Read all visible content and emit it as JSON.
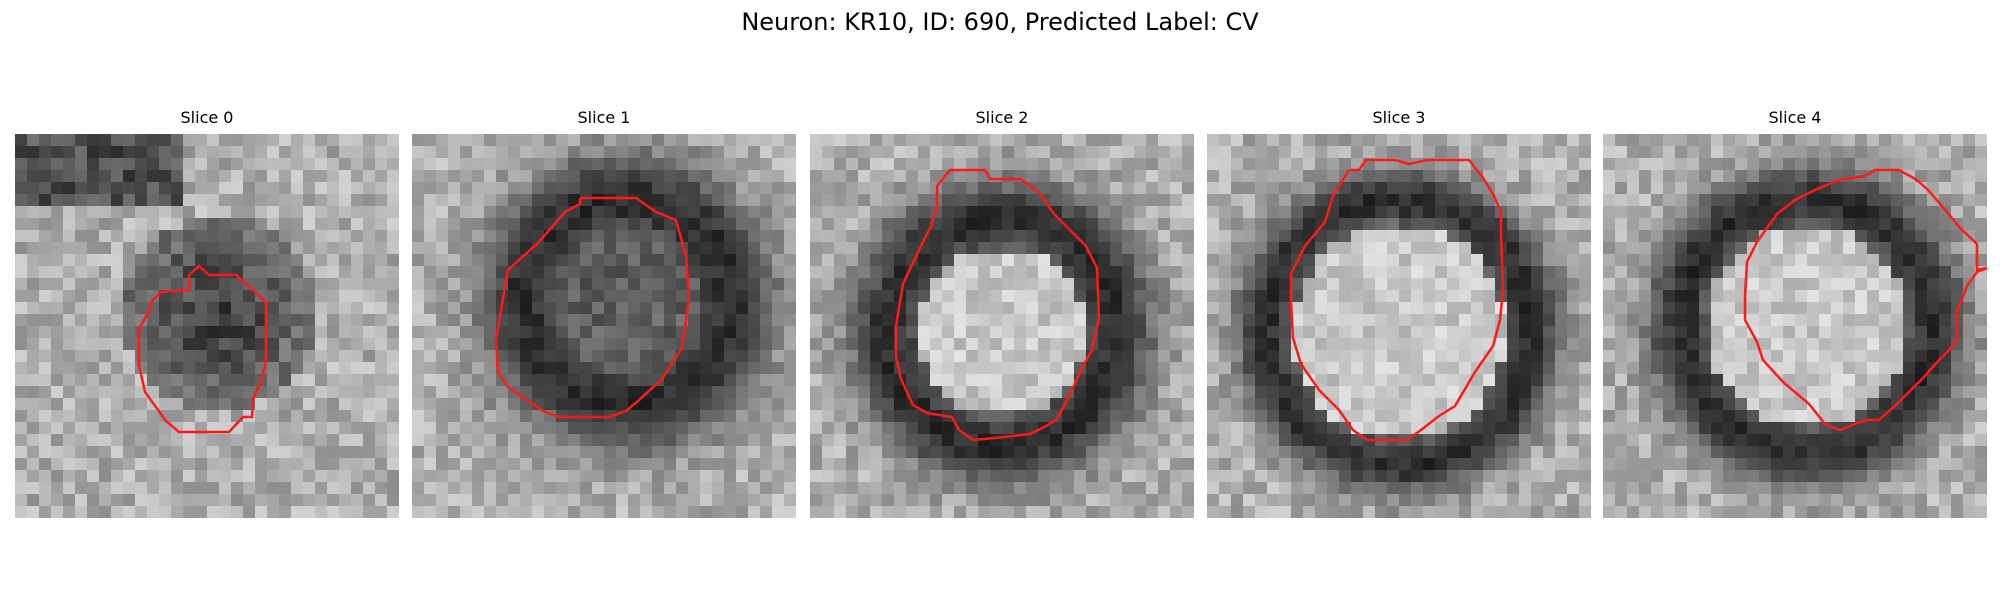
{
  "figure": {
    "title": "Neuron: KR10, ID: 690, Predicted Label: CV"
  },
  "panels": [
    {
      "title": "Slice 0",
      "morphology": "dark-blob"
    },
    {
      "title": "Slice 1",
      "morphology": "dark-ring-large"
    },
    {
      "title": "Slice 2",
      "morphology": "bright-center-dark-ring"
    },
    {
      "title": "Slice 3",
      "morphology": "bright-center-dark-ring"
    },
    {
      "title": "Slice 4",
      "morphology": "bright-center-dark-ring"
    }
  ],
  "colors": {
    "contour": "#ff1a1a"
  },
  "colormap": "gray"
}
